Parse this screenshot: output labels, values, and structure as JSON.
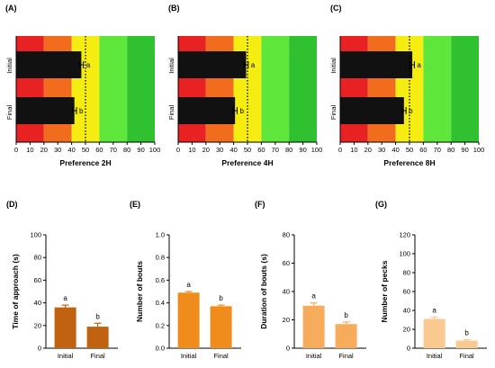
{
  "colors": {
    "bar": "#111111",
    "zones": [
      "#e82222",
      "#f26c1e",
      "#f5ec12",
      "#5ee63a",
      "#2fc12f"
    ],
    "bottom_bars": [
      "#c0620f",
      "#f08c1c",
      "#f7ac5c",
      "#fac98f"
    ]
  },
  "chart_data": [
    {
      "type": "bar",
      "orientation": "horizontal",
      "panel": "(A)",
      "xlabel": "Preference 2H",
      "categories": [
        "Initial",
        "Final"
      ],
      "values": [
        47,
        42
      ],
      "errors": [
        1.5,
        1.5
      ],
      "letters": [
        "a",
        "b"
      ],
      "reference_line": 50,
      "zone_bounds": [
        0,
        20,
        40,
        60,
        80,
        100
      ],
      "xlim": [
        0,
        100
      ],
      "xticks": [
        0,
        10,
        20,
        30,
        40,
        50,
        60,
        70,
        80,
        90,
        100
      ]
    },
    {
      "type": "bar",
      "orientation": "horizontal",
      "panel": "(B)",
      "xlabel": "Preference 4H",
      "categories": [
        "Initial",
        "Final"
      ],
      "values": [
        49,
        41
      ],
      "errors": [
        1.5,
        1.5
      ],
      "letters": [
        "a",
        "b"
      ],
      "reference_line": 50,
      "zone_bounds": [
        0,
        20,
        40,
        60,
        80,
        100
      ],
      "xlim": [
        0,
        100
      ],
      "xticks": [
        0,
        10,
        20,
        30,
        40,
        50,
        60,
        70,
        80,
        90,
        100
      ]
    },
    {
      "type": "bar",
      "orientation": "horizontal",
      "panel": "(C)",
      "xlabel": "Preference 8H",
      "categories": [
        "Initial",
        "Final"
      ],
      "values": [
        52,
        46
      ],
      "errors": [
        1.5,
        1.5
      ],
      "letters": [
        "a",
        "b"
      ],
      "reference_line": 50,
      "zone_bounds": [
        0,
        20,
        40,
        60,
        80,
        100
      ],
      "xlim": [
        0,
        100
      ],
      "xticks": [
        0,
        10,
        20,
        30,
        40,
        50,
        60,
        70,
        80,
        90,
        100
      ]
    },
    {
      "type": "bar",
      "panel": "(D)",
      "ylabel": "Time of approach (s)",
      "categories": [
        "Initial",
        "Final"
      ],
      "values": [
        36,
        19
      ],
      "errors": [
        2,
        3
      ],
      "letters": [
        "a",
        "b"
      ],
      "ylim": [
        0,
        100
      ],
      "yticks": [
        0,
        20,
        40,
        60,
        80,
        100
      ]
    },
    {
      "type": "bar",
      "panel": "(E)",
      "ylabel": "Number of bouts",
      "categories": [
        "Initial",
        "Final"
      ],
      "values": [
        0.49,
        0.37
      ],
      "errors": [
        0.01,
        0.01
      ],
      "letters": [
        "a",
        "b"
      ],
      "ylim": [
        0,
        1.0
      ],
      "yticks": [
        0.0,
        0.2,
        0.4,
        0.6,
        0.8,
        1.0
      ],
      "ytick_labels": [
        "0.0",
        "0.2",
        "0.4",
        "0.6",
        "0.8",
        "1.0"
      ]
    },
    {
      "type": "bar",
      "panel": "(F)",
      "ylabel": "Duration of bouts (s)",
      "categories": [
        "Initial",
        "Final"
      ],
      "values": [
        30,
        17
      ],
      "errors": [
        2,
        1.5
      ],
      "letters": [
        "a",
        "b"
      ],
      "ylim": [
        0,
        80
      ],
      "yticks": [
        0,
        20,
        40,
        60,
        80
      ]
    },
    {
      "type": "bar",
      "panel": "(G)",
      "ylabel": "Number of pecks",
      "categories": [
        "Initial",
        "Final"
      ],
      "values": [
        31,
        8
      ],
      "errors": [
        2,
        1
      ],
      "letters": [
        "a",
        "b"
      ],
      "ylim": [
        0,
        120
      ],
      "yticks": [
        0,
        20,
        40,
        60,
        80,
        100,
        120
      ]
    }
  ]
}
